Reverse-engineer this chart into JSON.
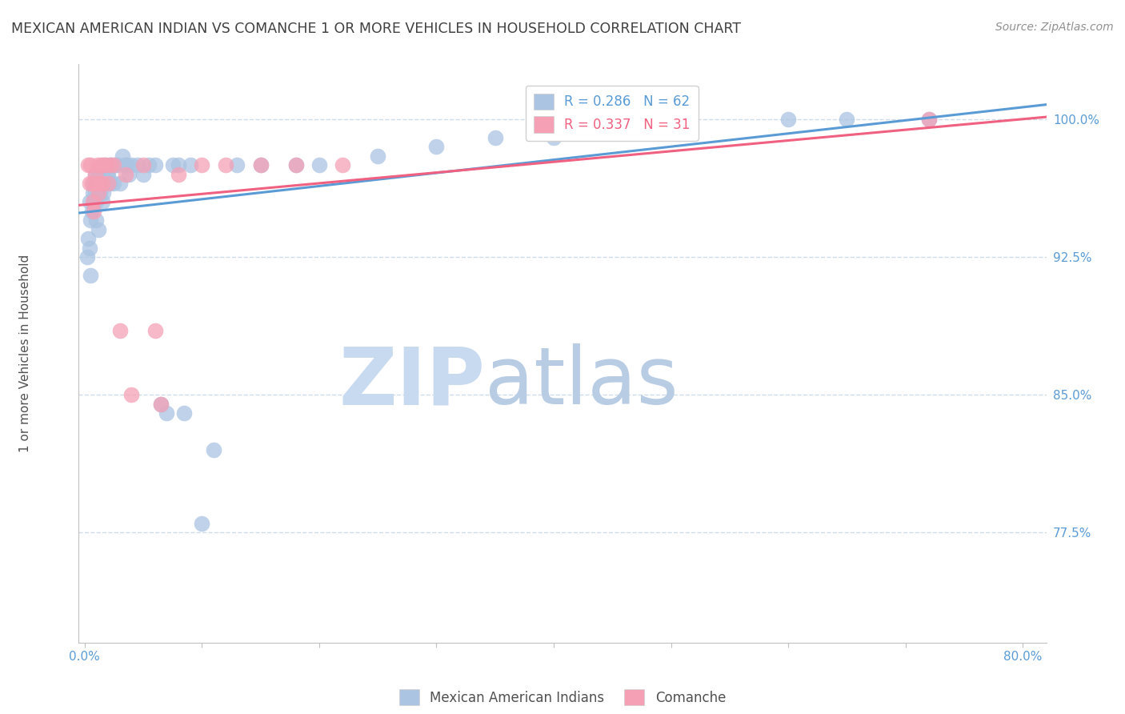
{
  "title": "MEXICAN AMERICAN INDIAN VS COMANCHE 1 OR MORE VEHICLES IN HOUSEHOLD CORRELATION CHART",
  "source": "Source: ZipAtlas.com",
  "ylabel": "1 or more Vehicles in Household",
  "xlabel_ticks": [
    "0.0%",
    "",
    "",
    "",
    "",
    "",
    "",
    "",
    "80.0%"
  ],
  "ytick_labels": [
    "77.5%",
    "85.0%",
    "92.5%",
    "100.0%"
  ],
  "ytick_values": [
    0.775,
    0.85,
    0.925,
    1.0
  ],
  "ylim": [
    0.715,
    1.03
  ],
  "xlim": [
    -0.005,
    0.82
  ],
  "legend_blue_label": "Mexican American Indians",
  "legend_pink_label": "Comanche",
  "legend_R_blue": "R = 0.286",
  "legend_N_blue": "N = 62",
  "legend_R_pink": "R = 0.337",
  "legend_N_pink": "N = 31",
  "blue_color": "#aac4e2",
  "pink_color": "#f5a0b5",
  "blue_line_color": "#5b9bd5",
  "pink_line_color": "#f06080",
  "title_color": "#404040",
  "source_color": "#909090",
  "grid_color": "#d0dce8",
  "tick_label_color": "#5b9bd5",
  "watermark_zip_color": "#c8daf0",
  "watermark_atlas_color": "#b8cce4",
  "blue_x": [
    0.002,
    0.003,
    0.004,
    0.004,
    0.005,
    0.005,
    0.006,
    0.007,
    0.008,
    0.008,
    0.009,
    0.009,
    0.01,
    0.01,
    0.011,
    0.012,
    0.012,
    0.013,
    0.014,
    0.015,
    0.015,
    0.016,
    0.017,
    0.018,
    0.019,
    0.02,
    0.021,
    0.022,
    0.023,
    0.025,
    0.026,
    0.028,
    0.03,
    0.032,
    0.034,
    0.036,
    0.038,
    0.04,
    0.045,
    0.05,
    0.055,
    0.06,
    0.065,
    0.07,
    0.075,
    0.08,
    0.085,
    0.09,
    0.1,
    0.11,
    0.13,
    0.15,
    0.18,
    0.2,
    0.25,
    0.3,
    0.35,
    0.4,
    0.5,
    0.6,
    0.65,
    0.72
  ],
  "blue_y": [
    0.925,
    0.935,
    0.93,
    0.955,
    0.915,
    0.945,
    0.95,
    0.96,
    0.955,
    0.965,
    0.96,
    0.97,
    0.945,
    0.955,
    0.965,
    0.94,
    0.97,
    0.96,
    0.965,
    0.955,
    0.97,
    0.96,
    0.975,
    0.965,
    0.97,
    0.97,
    0.975,
    0.965,
    0.975,
    0.965,
    0.975,
    0.975,
    0.965,
    0.98,
    0.975,
    0.975,
    0.97,
    0.975,
    0.975,
    0.97,
    0.975,
    0.975,
    0.845,
    0.84,
    0.975,
    0.975,
    0.84,
    0.975,
    0.78,
    0.82,
    0.975,
    0.975,
    0.975,
    0.975,
    0.98,
    0.985,
    0.99,
    0.99,
    0.995,
    1.0,
    1.0,
    1.0
  ],
  "pink_x": [
    0.003,
    0.004,
    0.005,
    0.006,
    0.007,
    0.008,
    0.009,
    0.01,
    0.011,
    0.012,
    0.013,
    0.014,
    0.015,
    0.016,
    0.018,
    0.02,
    0.022,
    0.025,
    0.03,
    0.035,
    0.04,
    0.05,
    0.06,
    0.065,
    0.08,
    0.1,
    0.12,
    0.15,
    0.18,
    0.22,
    0.72
  ],
  "pink_y": [
    0.975,
    0.965,
    0.975,
    0.965,
    0.955,
    0.95,
    0.97,
    0.965,
    0.975,
    0.96,
    0.965,
    0.975,
    0.965,
    0.975,
    0.975,
    0.965,
    0.975,
    0.975,
    0.885,
    0.97,
    0.85,
    0.975,
    0.885,
    0.845,
    0.97,
    0.975,
    0.975,
    0.975,
    0.975,
    0.975,
    1.0
  ]
}
